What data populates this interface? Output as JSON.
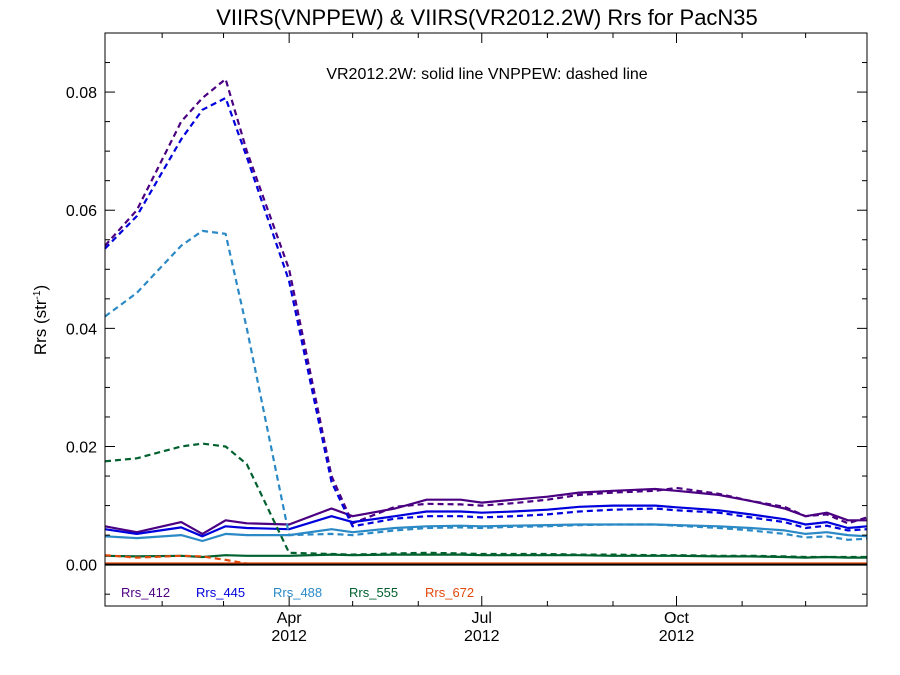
{
  "chart_data": {
    "type": "line",
    "title": "VIIRS(VNPPEW) & VIIRS(VR2012.2W)  Rrs for PacN35",
    "annotation": "VR2012.2W: solid line   VNPPEW: dashed line",
    "ylabel": "Rrs (str",
    "ylabel_sup": "-1",
    "ylabel_end": ")",
    "ylim": [
      -0.007,
      0.09
    ],
    "y_ticks": [
      0.0,
      0.02,
      0.04,
      0.06,
      0.08
    ],
    "y_tick_labels": [
      "0.00",
      "0.02",
      "0.04",
      "0.06",
      "0.08"
    ],
    "xlim": [
      "2012-01-05",
      "2012-12-30"
    ],
    "x_major_ticks": [
      {
        "date": "2012-04-01",
        "month": "Apr",
        "year": "2012"
      },
      {
        "date": "2012-07-01",
        "month": "Jul",
        "year": "2012"
      },
      {
        "date": "2012-10-01",
        "month": "Oct",
        "year": "2012"
      }
    ],
    "x_minor_ticks": [
      "2012-02-01",
      "2012-03-01",
      "2012-05-01",
      "2012-06-01",
      "2012-08-01",
      "2012-09-01",
      "2012-11-01",
      "2012-12-01"
    ],
    "x": [
      "2012-01-05",
      "2012-01-20",
      "2012-02-10",
      "2012-02-20",
      "2012-03-02",
      "2012-03-12",
      "2012-04-01",
      "2012-04-21",
      "2012-05-01",
      "2012-05-21",
      "2012-06-05",
      "2012-06-21",
      "2012-07-01",
      "2012-07-16",
      "2012-08-01",
      "2012-08-16",
      "2012-09-01",
      "2012-09-21",
      "2012-10-01",
      "2012-10-21",
      "2012-11-05",
      "2012-11-21",
      "2012-12-01",
      "2012-12-11",
      "2012-12-21",
      "2012-12-30"
    ],
    "series": [
      {
        "name": "Rrs_412",
        "color": "#4b0082",
        "style": "solid",
        "values": [
          0.0065,
          0.0055,
          0.0072,
          0.0052,
          0.0075,
          0.007,
          0.0068,
          0.0095,
          0.0082,
          0.0095,
          0.011,
          0.011,
          0.0105,
          0.011,
          0.0115,
          0.0122,
          0.0125,
          0.0128,
          0.0125,
          0.0118,
          0.0108,
          0.0095,
          0.0082,
          0.0088,
          0.0075,
          0.0075
        ]
      },
      {
        "name": "Rrs_412",
        "color": "#4b0082",
        "style": "dashed",
        "values": [
          0.054,
          0.06,
          0.075,
          0.079,
          0.0822,
          0.07,
          0.05,
          0.015,
          0.007,
          0.0098,
          0.0103,
          0.0102,
          0.01,
          0.0104,
          0.011,
          0.0118,
          0.0122,
          0.0125,
          0.013,
          0.012,
          0.0108,
          0.0098,
          0.0082,
          0.0085,
          0.007,
          0.008
        ]
      },
      {
        "name": "Rrs_445",
        "color": "#0000dc",
        "style": "solid",
        "values": [
          0.006,
          0.0052,
          0.0063,
          0.0048,
          0.0065,
          0.0062,
          0.006,
          0.0082,
          0.0072,
          0.0082,
          0.009,
          0.009,
          0.0088,
          0.009,
          0.0093,
          0.0098,
          0.01,
          0.01,
          0.0097,
          0.0092,
          0.0085,
          0.0077,
          0.0068,
          0.0072,
          0.0062,
          0.0065
        ]
      },
      {
        "name": "Rrs_445",
        "color": "#0000dc",
        "style": "dashed",
        "values": [
          0.0535,
          0.059,
          0.072,
          0.077,
          0.079,
          0.069,
          0.048,
          0.014,
          0.0065,
          0.0078,
          0.0082,
          0.0082,
          0.008,
          0.0082,
          0.0085,
          0.009,
          0.0093,
          0.0095,
          0.0092,
          0.0088,
          0.008,
          0.0072,
          0.0062,
          0.0066,
          0.0058,
          0.006
        ]
      },
      {
        "name": "Rrs_488",
        "color": "#2b8ac6",
        "style": "solid",
        "values": [
          0.0048,
          0.0045,
          0.005,
          0.004,
          0.0052,
          0.005,
          0.005,
          0.006,
          0.0055,
          0.0062,
          0.0065,
          0.0066,
          0.0065,
          0.0066,
          0.0067,
          0.0068,
          0.0068,
          0.0068,
          0.0067,
          0.0065,
          0.0062,
          0.0058,
          0.0052,
          0.0055,
          0.005,
          0.0048
        ]
      },
      {
        "name": "Rrs_488",
        "color": "#2b8ac6",
        "style": "dashed",
        "values": [
          0.042,
          0.046,
          0.054,
          0.0565,
          0.056,
          0.04,
          0.005,
          0.0052,
          0.005,
          0.0058,
          0.0062,
          0.0063,
          0.0062,
          0.0064,
          0.0065,
          0.0067,
          0.0068,
          0.0068,
          0.0066,
          0.0062,
          0.0058,
          0.0052,
          0.0046,
          0.0048,
          0.0042,
          0.0044
        ]
      },
      {
        "name": "Rrs_555",
        "color": "#00602e",
        "style": "solid",
        "values": [
          0.0015,
          0.0014,
          0.0015,
          0.0013,
          0.0016,
          0.0015,
          0.0015,
          0.0017,
          0.0016,
          0.0017,
          0.0017,
          0.0017,
          0.0016,
          0.0016,
          0.0016,
          0.0016,
          0.0015,
          0.0015,
          0.0015,
          0.0014,
          0.0014,
          0.0013,
          0.0012,
          0.0013,
          0.0012,
          0.0012
        ]
      },
      {
        "name": "Rrs_555",
        "color": "#00602e",
        "style": "dashed",
        "values": [
          0.0175,
          0.018,
          0.02,
          0.0205,
          0.02,
          0.017,
          0.002,
          0.0018,
          0.0017,
          0.0019,
          0.002,
          0.0019,
          0.0018,
          0.0018,
          0.0018,
          0.0017,
          0.0017,
          0.0016,
          0.0016,
          0.0015,
          0.0015,
          0.0014,
          0.0013,
          0.0013,
          0.0013,
          0.0013
        ]
      },
      {
        "name": "Rrs_672",
        "color": "#e14a0b",
        "style": "solid",
        "values": [
          0.0002,
          0.0002,
          0.0002,
          0.0002,
          0.0002,
          0.0002,
          0.0002,
          0.0002,
          0.0002,
          0.0002,
          0.0002,
          0.0002,
          0.0002,
          0.0002,
          0.0002,
          0.0002,
          0.0002,
          0.0002,
          0.0002,
          0.0002,
          0.0002,
          0.0002,
          0.0002,
          0.0002,
          0.0002,
          0.0002
        ]
      },
      {
        "name": "Rrs_672",
        "color": "#e14a0b",
        "style": "dashed",
        "values": [
          0.0016,
          0.0012,
          0.0015,
          0.0014,
          0.0008,
          0.0002,
          0.0001,
          0.0001,
          0.0001,
          0.0001,
          0.0001,
          0.0001,
          0.0001,
          0.0001,
          0.0001,
          0.0001,
          0.0001,
          0.0001,
          0.0001,
          0.0001,
          0.0001,
          0.0001,
          0.0001,
          0.0001,
          0.0001,
          0.0001
        ]
      }
    ],
    "legend": [
      {
        "label": "Rrs_412",
        "color": "#4b0082"
      },
      {
        "label": "Rrs_445",
        "color": "#0000dc"
      },
      {
        "label": "Rrs_488",
        "color": "#2b8ac6"
      },
      {
        "label": "Rrs_555",
        "color": "#00602e"
      },
      {
        "label": "Rrs_672",
        "color": "#e14a0b"
      }
    ],
    "legend_position": "bottom-left",
    "grid": false
  }
}
